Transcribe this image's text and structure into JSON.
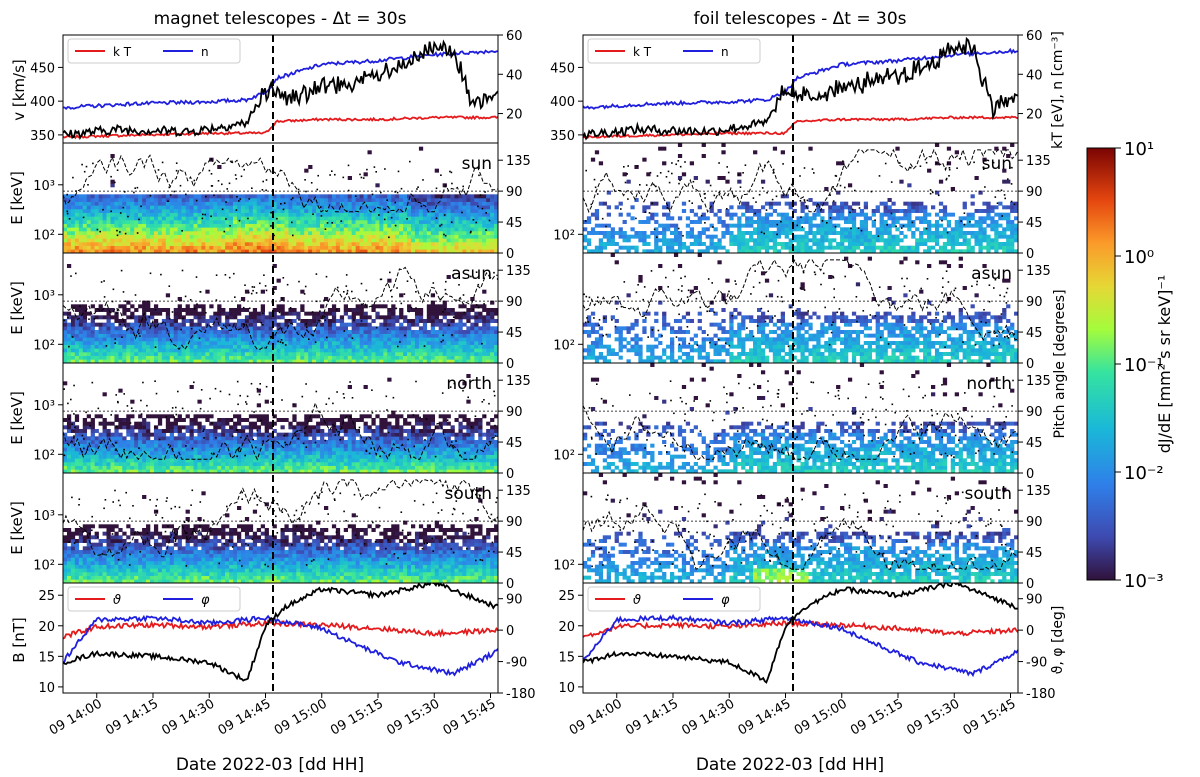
{
  "figure": {
    "xlabel": "Date 2022-03 [dd HH]",
    "time_ticks": [
      "09 14:00",
      "09 14:15",
      "09 14:30",
      "09 14:45",
      "09 15:00",
      "09 15:15",
      "09 15:30",
      "09 15:45"
    ],
    "event_time": "09 14:47",
    "colorbar": {
      "label": "dJ/dE [mm² s sr keV]⁻¹",
      "tick_labels": [
        "10¹",
        "10⁰",
        "10⁻¹",
        "10⁻²",
        "10⁻³"
      ],
      "range": [
        0.001,
        10
      ],
      "scale": "log",
      "colormap": "jet"
    }
  },
  "columns": [
    {
      "title": "magnet telescopes  -  Δt = 30s",
      "top_ylabel": "v [km/s]",
      "top_yticks": [
        "350",
        "400",
        "450"
      ],
      "top_y2ticks": [
        "20",
        "40",
        "60"
      ],
      "legend_top": [
        "k T",
        "n"
      ],
      "energy_ylabel": "E [keV]",
      "energy_yticks": [
        "10²",
        "10³"
      ],
      "pitch_ticks": [
        "0",
        "45",
        "90",
        "135"
      ],
      "directions": [
        "sun",
        "asun",
        "north",
        "south"
      ],
      "bottom_ylabel": "B [nT]",
      "bottom_yticks": [
        "10",
        "15",
        "20",
        "25"
      ],
      "bottom_y2ticks": [
        "-180",
        "-90",
        "0",
        "90"
      ],
      "legend_bottom": [
        "ϑ",
        "φ"
      ]
    },
    {
      "title": "foil telescopes  -  Δt = 30s",
      "top_y2label": "kT [eV], n [cm⁻³]",
      "top_yticks": [
        "350",
        "400",
        "450"
      ],
      "top_y2ticks": [
        "20",
        "40",
        "60"
      ],
      "legend_top": [
        "k T",
        "n"
      ],
      "energy_yticks": [
        "10²"
      ],
      "pitch_ticks": [
        "0",
        "45",
        "90",
        "135"
      ],
      "pitch_label": "Pitch angle [degrees]",
      "directions": [
        "sun",
        "asun",
        "north",
        "south"
      ],
      "bottom_yticks": [
        "10",
        "15",
        "20",
        "25"
      ],
      "bottom_y2ticks": [
        "-180",
        "-90",
        "0",
        "90"
      ],
      "bottom_y2label": "ϑ, φ [deg]",
      "legend_bottom": [
        "ϑ",
        "φ"
      ]
    }
  ],
  "colors": {
    "kT": "#e41a1c",
    "n": "#1f1fdd",
    "v": "#000000",
    "theta": "#e41a1c",
    "phi": "#1f1fdd",
    "B": "#000000"
  },
  "chart_data": [
    {
      "type": "line",
      "title": "magnet telescopes  -  Δt = 30s",
      "xrange": [
        "09 13:51",
        "09 15:47"
      ],
      "ylabel": "v [km/s]",
      "ylim": [
        338,
        498
      ],
      "y2label": "kT [eV], n [cm⁻³]",
      "y2lim": [
        5,
        60
      ],
      "legend": "top-left",
      "series": [
        {
          "name": "k T",
          "axis": "y2",
          "x": [
            "13:51",
            "14:10",
            "14:30",
            "14:40",
            "14:45",
            "14:48",
            "15:00",
            "15:15",
            "15:30",
            "15:47"
          ],
          "values": [
            8,
            9,
            10,
            10,
            10,
            16,
            17,
            17,
            18,
            18
          ]
        },
        {
          "name": "n",
          "axis": "y2",
          "x": [
            "13:51",
            "14:10",
            "14:30",
            "14:40",
            "14:45",
            "14:48",
            "15:00",
            "15:15",
            "15:30",
            "15:47"
          ],
          "values": [
            23,
            25,
            26,
            27,
            31,
            38,
            45,
            47,
            50,
            52
          ]
        },
        {
          "axis": "y",
          "x": [
            "13:51",
            "14:05",
            "14:25",
            "14:40",
            "14:45",
            "14:50",
            "15:00",
            "15:10",
            "15:20",
            "15:30",
            "15:35",
            "15:40",
            "15:47"
          ],
          "values": [
            350,
            358,
            355,
            368,
            415,
            405,
            420,
            430,
            445,
            480,
            483,
            390,
            410
          ]
        }
      ]
    },
    {
      "type": "heatmap",
      "direction": "sun",
      "ylabel": "E [keV]",
      "yscale": "log",
      "y2label": "Pitch angle [degrees]",
      "y2lim": [
        0,
        160
      ],
      "pitch_reference": 90,
      "description_values": {
        "flux_low_energy": 1.0,
        "flux_high_energy": 0.001
      }
    },
    {
      "type": "line",
      "title": "magnet telescopes  -  Δt = 30s",
      "ylabel": "B [nT]",
      "ylim": [
        9,
        27
      ],
      "y2label": "ϑ, φ [deg]",
      "y2lim": [
        -180,
        135
      ],
      "legend": "top-left",
      "series": [
        {
          "name": "ϑ",
          "axis": "y2",
          "x": [
            "13:51",
            "14:00",
            "14:15",
            "14:30",
            "14:45",
            "15:00",
            "15:15",
            "15:30",
            "15:47"
          ],
          "values": [
            -20,
            10,
            15,
            10,
            20,
            15,
            5,
            -10,
            0
          ]
        },
        {
          "name": "φ",
          "axis": "y2",
          "x": [
            "13:51",
            "14:00",
            "14:15",
            "14:30",
            "14:45",
            "15:00",
            "15:10",
            "15:20",
            "15:35",
            "15:47"
          ],
          "values": [
            -90,
            30,
            35,
            20,
            35,
            5,
            -45,
            -90,
            -125,
            -60
          ]
        },
        {
          "axis": "y",
          "x": [
            "13:51",
            "14:00",
            "14:15",
            "14:30",
            "14:40",
            "14:45",
            "14:50",
            "15:00",
            "15:15",
            "15:30",
            "15:47"
          ],
          "values": [
            14,
            15.5,
            15,
            14,
            11,
            20,
            23,
            26,
            25,
            27,
            23
          ]
        }
      ]
    }
  ]
}
